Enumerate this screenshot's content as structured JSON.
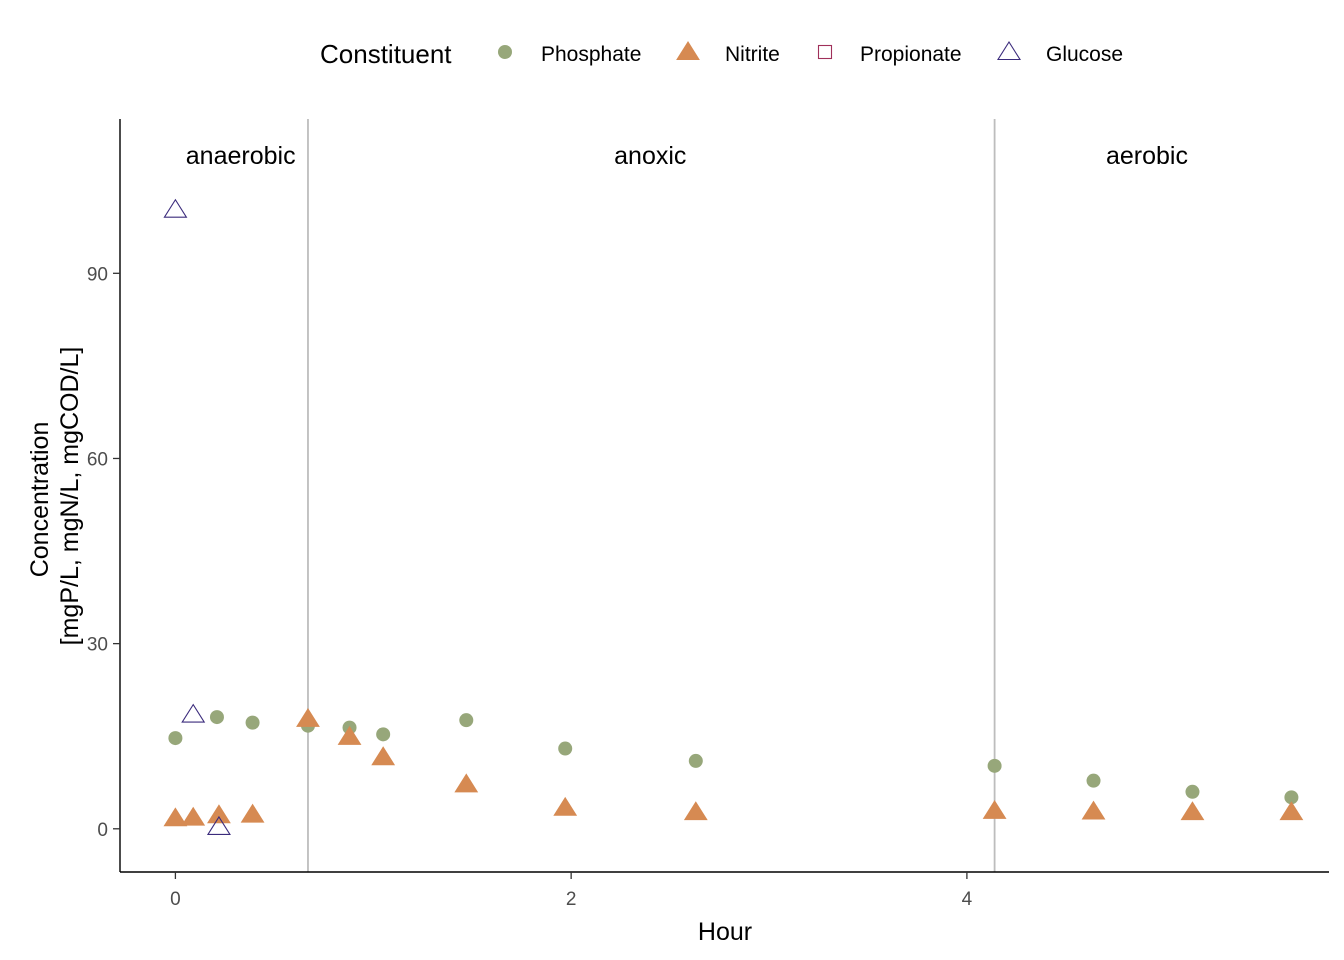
{
  "chart_data": {
    "type": "scatter",
    "xlabel": "Hour",
    "ylabel_lines": [
      "Concentration",
      "[mgP/L, mgN/L, mgCOD/L]"
    ],
    "xlim": [
      -0.28,
      5.83
    ],
    "ylim": [
      -7,
      115
    ],
    "x_ticks": [
      0,
      2,
      4
    ],
    "y_ticks": [
      0,
      30,
      60,
      90
    ],
    "grid": false,
    "legend": {
      "title": "Constituent",
      "placement": "top",
      "entries": [
        {
          "label": "Phosphate",
          "shape": "circle",
          "color": "#97a77a"
        },
        {
          "label": "Nitrite",
          "shape": "triangle-filled",
          "color": "#d68a52"
        },
        {
          "label": "Propionate",
          "shape": "square-open",
          "color": "#a0305a"
        },
        {
          "label": "Glucose",
          "shape": "triangle-open",
          "color": "#3b2b7c"
        }
      ]
    },
    "phase_boundaries": [
      0.67,
      4.14
    ],
    "phases": [
      {
        "label": "anaerobic",
        "x": 0.33
      },
      {
        "label": "anoxic",
        "x": 2.4
      },
      {
        "label": "aerobic",
        "x": 4.91
      }
    ],
    "series": [
      {
        "name": "Phosphate",
        "x": [
          0.0,
          0.21,
          0.39,
          0.67,
          0.88,
          1.05,
          1.47,
          1.97,
          2.63,
          4.14,
          4.64,
          5.14,
          5.64
        ],
        "y": [
          14.7,
          18.1,
          17.2,
          16.7,
          16.4,
          15.3,
          17.6,
          13.0,
          11.0,
          10.2,
          7.8,
          6.0,
          5.1
        ]
      },
      {
        "name": "Nitrite",
        "x": [
          0.0,
          0.09,
          0.22,
          0.39,
          0.67,
          0.88,
          1.05,
          1.47,
          1.97,
          2.63,
          4.14,
          4.64,
          5.14,
          5.64
        ],
        "y": [
          1.7,
          1.8,
          2.2,
          2.3,
          17.8,
          14.9,
          11.6,
          7.2,
          3.4,
          2.7,
          2.9,
          2.8,
          2.7,
          2.7
        ]
      },
      {
        "name": "Propionate",
        "x": [],
        "y": []
      },
      {
        "name": "Glucose",
        "x": [
          0.0,
          0.09,
          0.22
        ],
        "y": [
          100.3,
          18.5,
          0.3
        ]
      }
    ]
  }
}
